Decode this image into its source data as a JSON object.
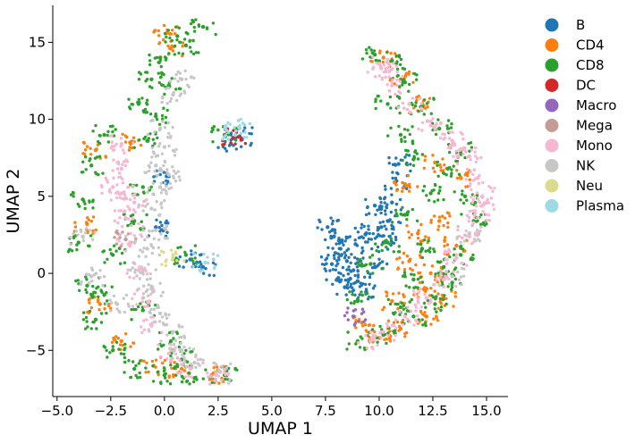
{
  "chart_data": {
    "type": "scatter",
    "title": "",
    "xlabel": "UMAP 1",
    "ylabel": "UMAP 2",
    "xlim": [
      -5.2,
      16.0
    ],
    "ylim": [
      -8.0,
      17.4
    ],
    "xticks": [
      -5.0,
      -2.5,
      0.0,
      2.5,
      5.0,
      7.5,
      10.0,
      12.5,
      15.0
    ],
    "xtick_labels": [
      "−5.0",
      "−2.5",
      "0.0",
      "2.5",
      "5.0",
      "7.5",
      "10.0",
      "12.5",
      "15.0"
    ],
    "yticks": [
      -5,
      0,
      5,
      10,
      15
    ],
    "ytick_labels": [
      "−5",
      "0",
      "5",
      "10",
      "15"
    ],
    "grid": false,
    "legend_position": "outside-right",
    "series": [
      {
        "name": "B",
        "color": "#1f77b4",
        "points": [
          [
            7.6,
            3.0
          ],
          [
            7.9,
            2.4
          ],
          [
            8.2,
            1.6
          ],
          [
            8.5,
            0.8
          ],
          [
            8.8,
            0.2
          ],
          [
            9.0,
            -0.5
          ],
          [
            7.8,
            0.6
          ],
          [
            8.1,
            -0.3
          ],
          [
            8.4,
            -0.9
          ],
          [
            9.4,
            -1.2
          ],
          [
            9.8,
            0.4
          ],
          [
            10.2,
            2.0
          ],
          [
            10.4,
            3.4
          ],
          [
            10.6,
            4.6
          ],
          [
            10.8,
            6.0
          ],
          [
            10.9,
            7.1
          ],
          [
            9.8,
            4.4
          ],
          [
            10.1,
            3.0
          ],
          [
            9.4,
            2.6
          ],
          [
            8.9,
            1.9
          ],
          [
            3.1,
            8.4
          ],
          [
            3.5,
            8.9
          ],
          [
            1.8,
            0.4
          ],
          [
            1.2,
            0.9
          ],
          [
            -0.4,
            3.0
          ],
          [
            0.1,
            6.3
          ]
        ]
      },
      {
        "name": "CD4",
        "color": "#ff7f0e",
        "points": [
          [
            -3.2,
            8.0
          ],
          [
            -3.6,
            3.2
          ],
          [
            -3.0,
            -2.0
          ],
          [
            -2.0,
            -4.4
          ],
          [
            -0.5,
            -6.0
          ],
          [
            0.8,
            -6.2
          ],
          [
            2.2,
            -6.6
          ],
          [
            0.3,
            14.6
          ],
          [
            0.1,
            15.6
          ],
          [
            -1.6,
            8.5
          ],
          [
            10.0,
            -4.2
          ],
          [
            11.0,
            -3.6
          ],
          [
            12.2,
            -2.8
          ],
          [
            13.0,
            -1.6
          ],
          [
            12.4,
            0.0
          ],
          [
            11.4,
            0.8
          ],
          [
            11.8,
            2.6
          ],
          [
            12.8,
            3.4
          ],
          [
            13.6,
            1.8
          ],
          [
            12.2,
            -1.0
          ],
          [
            10.6,
            -1.8
          ],
          [
            11.2,
            5.8
          ],
          [
            12.6,
            7.2
          ],
          [
            13.8,
            6.2
          ],
          [
            10.2,
            14.0
          ],
          [
            11.0,
            12.6
          ],
          [
            12.0,
            11.0
          ],
          [
            9.2,
            -3.2
          ]
        ]
      },
      {
        "name": "CD8",
        "color": "#2ca02c",
        "points": [
          [
            -4.0,
            2.0
          ],
          [
            -3.8,
            4.8
          ],
          [
            -3.4,
            7.0
          ],
          [
            -2.8,
            9.0
          ],
          [
            -3.6,
            -0.8
          ],
          [
            -3.2,
            -3.0
          ],
          [
            -2.4,
            -5.0
          ],
          [
            -1.4,
            -6.2
          ],
          [
            0.0,
            -6.6
          ],
          [
            1.4,
            -6.8
          ],
          [
            2.8,
            -6.6
          ],
          [
            -1.2,
            11.0
          ],
          [
            -0.6,
            12.6
          ],
          [
            -0.2,
            14.0
          ],
          [
            0.6,
            15.4
          ],
          [
            1.8,
            16.0
          ],
          [
            -0.8,
            8.6
          ],
          [
            -1.0,
            5.6
          ],
          [
            -1.4,
            3.4
          ],
          [
            -2.4,
            1.2
          ],
          [
            -2.8,
            -1.4
          ],
          [
            -1.0,
            -2.4
          ],
          [
            0.3,
            -4.4
          ],
          [
            0.8,
            -5.6
          ],
          [
            -0.4,
            10.2
          ],
          [
            0.2,
            12.2
          ],
          [
            1.0,
            14.8
          ],
          [
            9.0,
            -4.4
          ],
          [
            10.2,
            -4.0
          ],
          [
            11.6,
            -2.8
          ],
          [
            12.6,
            -2.0
          ],
          [
            13.4,
            -0.6
          ],
          [
            13.8,
            1.2
          ],
          [
            14.4,
            3.4
          ],
          [
            14.0,
            5.0
          ],
          [
            13.2,
            6.8
          ],
          [
            13.8,
            8.0
          ],
          [
            12.8,
            9.4
          ],
          [
            12.0,
            10.8
          ],
          [
            11.2,
            12.4
          ],
          [
            10.6,
            13.8
          ],
          [
            9.8,
            14.2
          ],
          [
            10.4,
            11.0
          ],
          [
            11.0,
            9.0
          ],
          [
            11.6,
            7.4
          ],
          [
            12.4,
            5.2
          ],
          [
            11.2,
            3.8
          ],
          [
            10.4,
            2.0
          ],
          [
            9.6,
            0.6
          ],
          [
            9.0,
            -1.8
          ],
          [
            11.6,
            -0.4
          ],
          [
            13.0,
            0.4
          ],
          [
            12.0,
            1.6
          ],
          [
            11.0,
            -2.2
          ],
          [
            2.8,
            9.0
          ],
          [
            1.0,
            1.2
          ]
        ]
      },
      {
        "name": "DC",
        "color": "#d62728",
        "points": [
          [
            3.2,
            8.8
          ]
        ]
      },
      {
        "name": "Macro",
        "color": "#9467bd",
        "points": [
          [
            8.8,
            -2.8
          ]
        ]
      },
      {
        "name": "Mega",
        "color": "#c49c94",
        "points": [
          [
            -1.8,
            2.2
          ]
        ]
      },
      {
        "name": "Mono",
        "color": "#f7b6d2",
        "points": [
          [
            -2.0,
            8.4
          ],
          [
            -2.0,
            6.8
          ],
          [
            -2.0,
            5.2
          ],
          [
            -1.8,
            3.6
          ],
          [
            -1.6,
            2.0
          ],
          [
            -1.2,
            0.2
          ],
          [
            -1.0,
            -1.6
          ],
          [
            -0.6,
            -3.4
          ],
          [
            0.2,
            -5.2
          ],
          [
            1.2,
            -6.2
          ],
          [
            2.4,
            -6.6
          ],
          [
            -2.4,
            5.6
          ],
          [
            -1.4,
            4.6
          ],
          [
            10.0,
            13.6
          ],
          [
            10.6,
            12.2
          ],
          [
            11.4,
            11.0
          ],
          [
            12.4,
            9.6
          ],
          [
            13.4,
            8.6
          ],
          [
            14.2,
            7.6
          ],
          [
            14.6,
            6.2
          ],
          [
            14.8,
            5.0
          ],
          [
            14.6,
            3.6
          ],
          [
            14.2,
            2.4
          ],
          [
            13.6,
            1.0
          ],
          [
            13.0,
            -0.4
          ],
          [
            12.2,
            -1.6
          ],
          [
            11.2,
            -2.8
          ],
          [
            10.2,
            -3.8
          ],
          [
            9.6,
            -4.4
          ],
          [
            10.3,
            13.1
          ],
          [
            13.9,
            8.1
          ],
          [
            14.8,
            4.4
          ]
        ]
      },
      {
        "name": "NK",
        "color": "#c7c7c7",
        "points": [
          [
            -0.2,
            9.4
          ],
          [
            0.0,
            8.2
          ],
          [
            -0.4,
            7.0
          ],
          [
            -0.2,
            5.6
          ],
          [
            -0.6,
            4.2
          ],
          [
            -0.4,
            2.8
          ],
          [
            -0.8,
            1.6
          ],
          [
            -1.0,
            0.2
          ],
          [
            -0.6,
            -1.0
          ],
          [
            -0.2,
            -2.6
          ],
          [
            0.4,
            -3.8
          ],
          [
            0.8,
            -5.0
          ],
          [
            1.4,
            -5.8
          ],
          [
            2.6,
            -6.4
          ],
          [
            0.4,
            11.6
          ],
          [
            0.8,
            12.6
          ],
          [
            -3.8,
            2.4
          ],
          [
            -3.4,
            -0.2
          ],
          [
            -2.2,
            -2.0
          ],
          [
            0.2,
            6.4
          ],
          [
            14.2,
            2.6
          ],
          [
            13.4,
            -0.2
          ]
        ]
      },
      {
        "name": "Neu",
        "color": "#dbdb8d",
        "points": [
          [
            0.4,
            1.0
          ]
        ]
      },
      {
        "name": "Plasma",
        "color": "#9edae5",
        "points": [
          [
            3.5,
            9.4
          ],
          [
            3.3,
            9.0
          ],
          [
            1.9,
            0.7
          ]
        ]
      }
    ]
  }
}
